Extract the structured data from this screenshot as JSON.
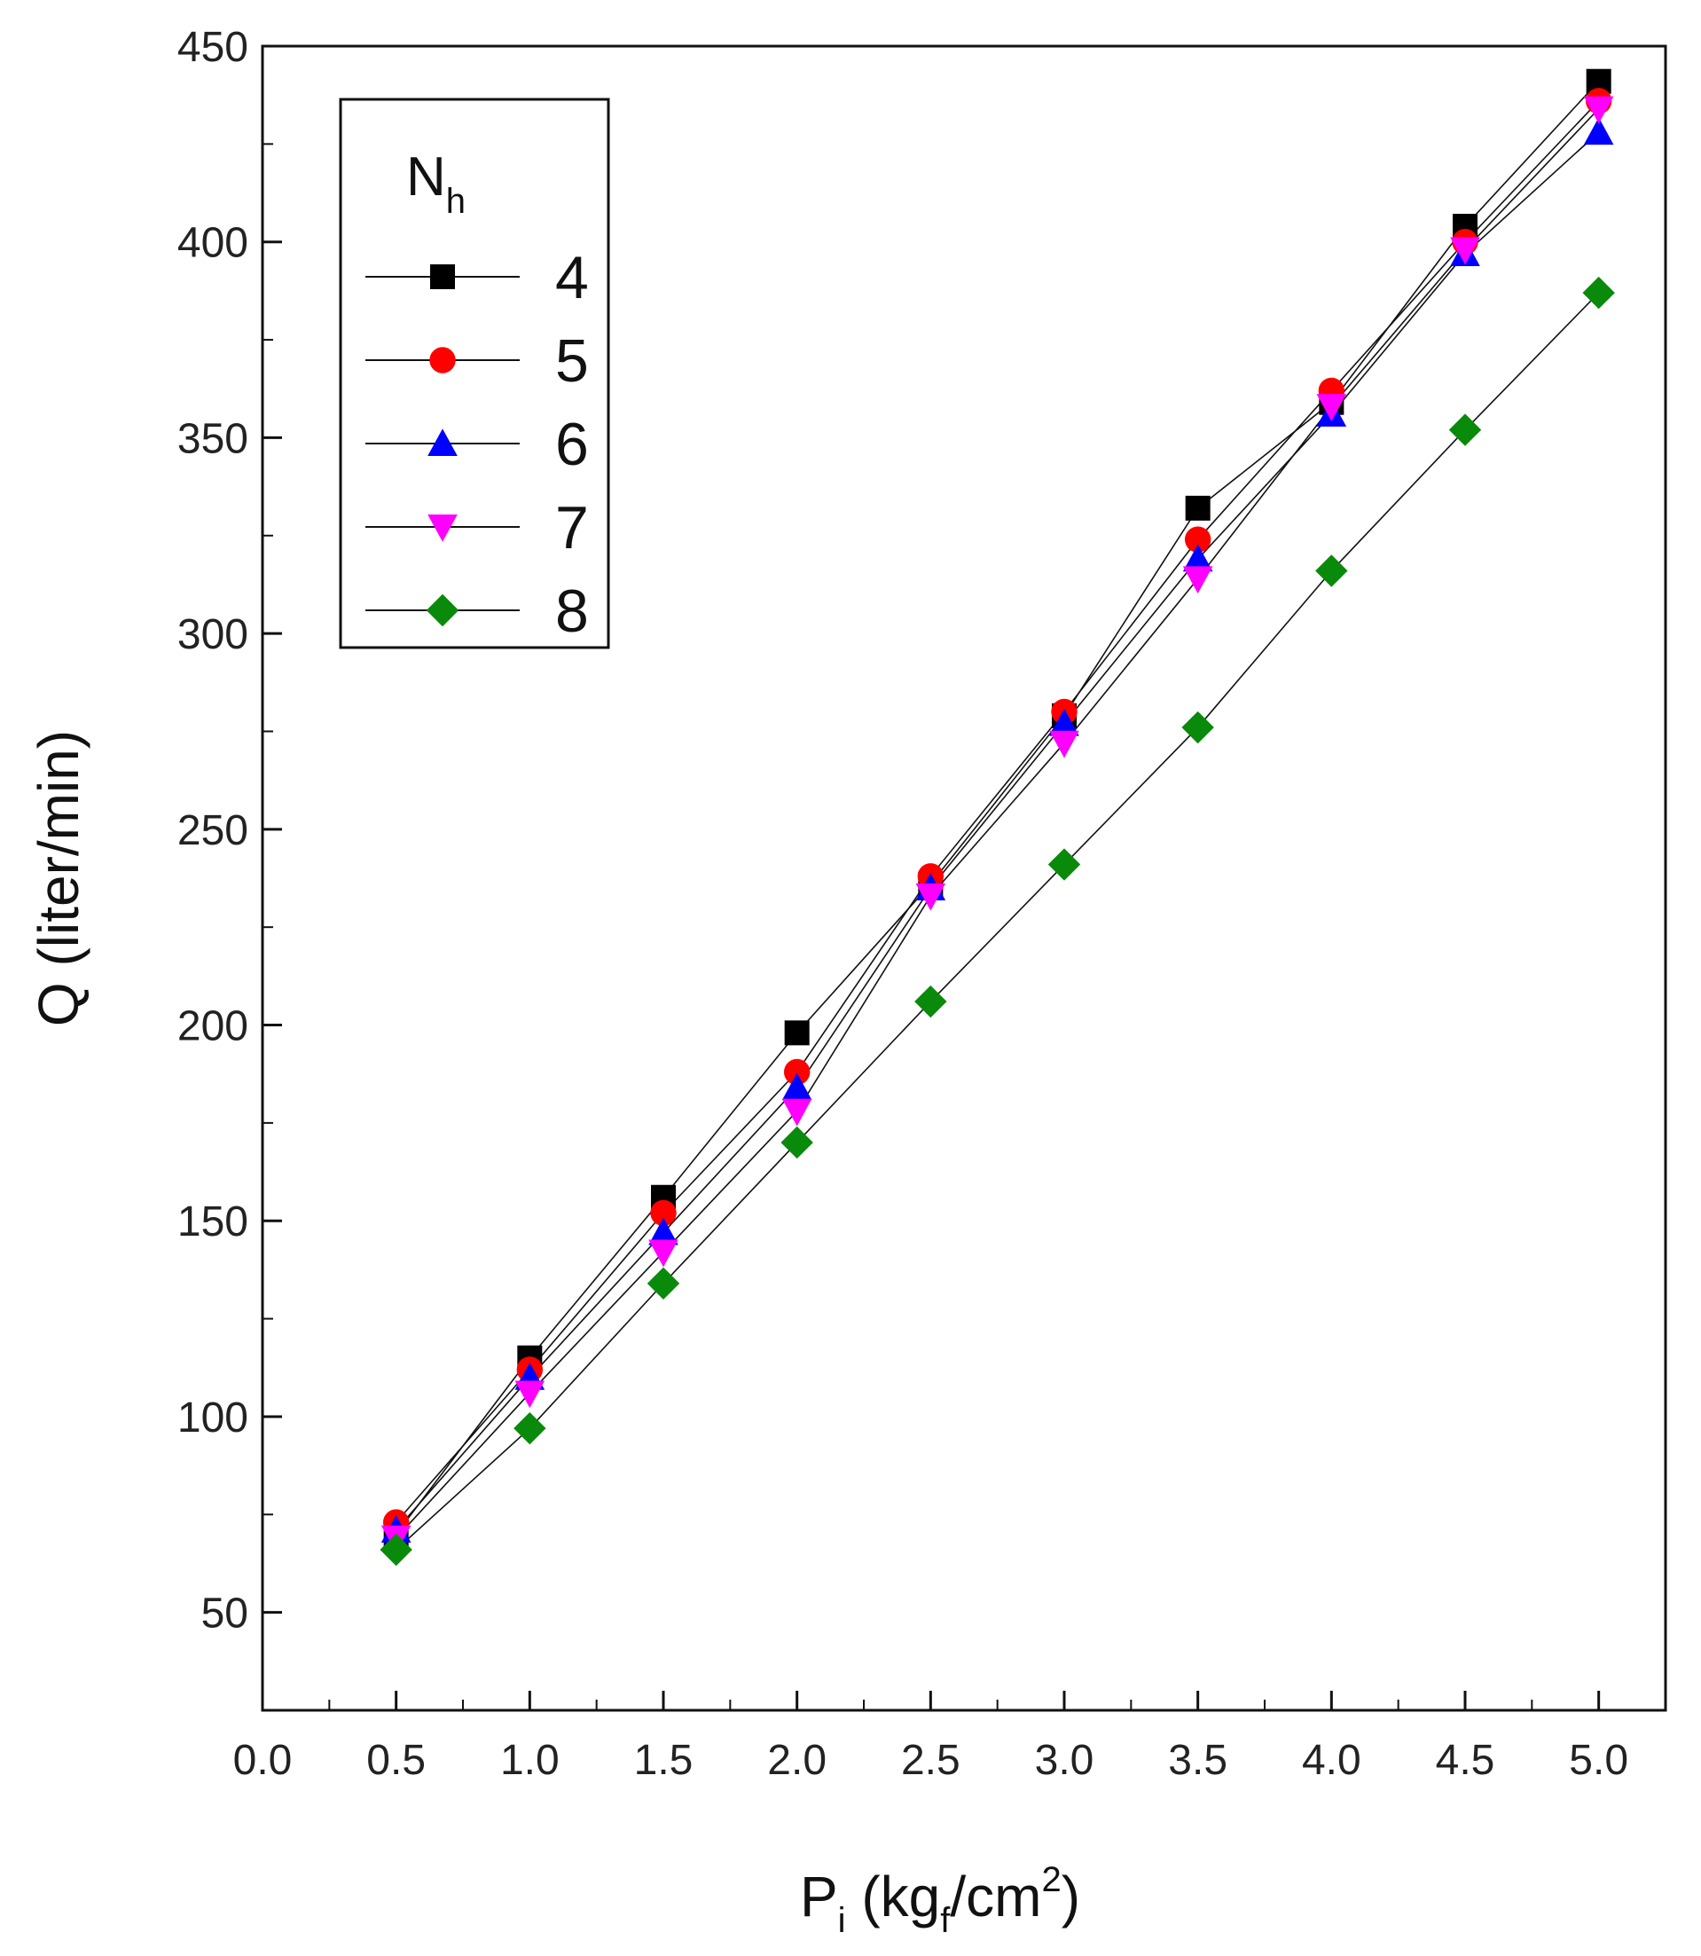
{
  "chart_data": {
    "type": "line",
    "title": "",
    "xlabel": {
      "main": "P",
      "sub": "i",
      "unit_open": " (kg",
      "unit_sub": "f",
      "unit_mid": "/cm",
      "unit_sup": "2",
      "unit_close": ")"
    },
    "ylabel": "Q (liter/min)",
    "xlim": [
      0.0,
      5.25
    ],
    "ylim": [
      25,
      450
    ],
    "x_ticks": [
      "0.0",
      "0.5",
      "1.0",
      "1.5",
      "2.0",
      "2.5",
      "3.0",
      "3.5",
      "4.0",
      "4.5",
      "5.0"
    ],
    "y_ticks": [
      "50",
      "100",
      "150",
      "200",
      "250",
      "300",
      "350",
      "400",
      "450"
    ],
    "legend": {
      "title_main": "N",
      "title_sub": "h",
      "position": "top-left"
    },
    "x": [
      0.5,
      1.0,
      1.5,
      2.0,
      2.5,
      3.0,
      3.5,
      4.0,
      4.5,
      5.0
    ],
    "series": [
      {
        "name": "4",
        "marker": "square",
        "color": "#000000",
        "values": [
          70,
          115,
          156,
          198,
          236,
          279,
          332,
          359,
          404,
          441
        ]
      },
      {
        "name": "5",
        "marker": "circle",
        "color": "#ff0000",
        "values": [
          73,
          112,
          152,
          188,
          238,
          280,
          324,
          362,
          400,
          436
        ]
      },
      {
        "name": "6",
        "marker": "triangle-up",
        "color": "#0000ff",
        "values": [
          71,
          110,
          147,
          184,
          235,
          277,
          319,
          356,
          397,
          428
        ]
      },
      {
        "name": "7",
        "marker": "triangle-down",
        "color": "#ff00ff",
        "values": [
          69,
          106,
          142,
          178,
          233,
          272,
          314,
          358,
          398,
          434
        ]
      },
      {
        "name": "8",
        "marker": "diamond",
        "color": "#0a8a0a",
        "values": [
          66,
          97,
          134,
          170,
          206,
          241,
          276,
          316,
          352,
          387
        ]
      }
    ]
  }
}
